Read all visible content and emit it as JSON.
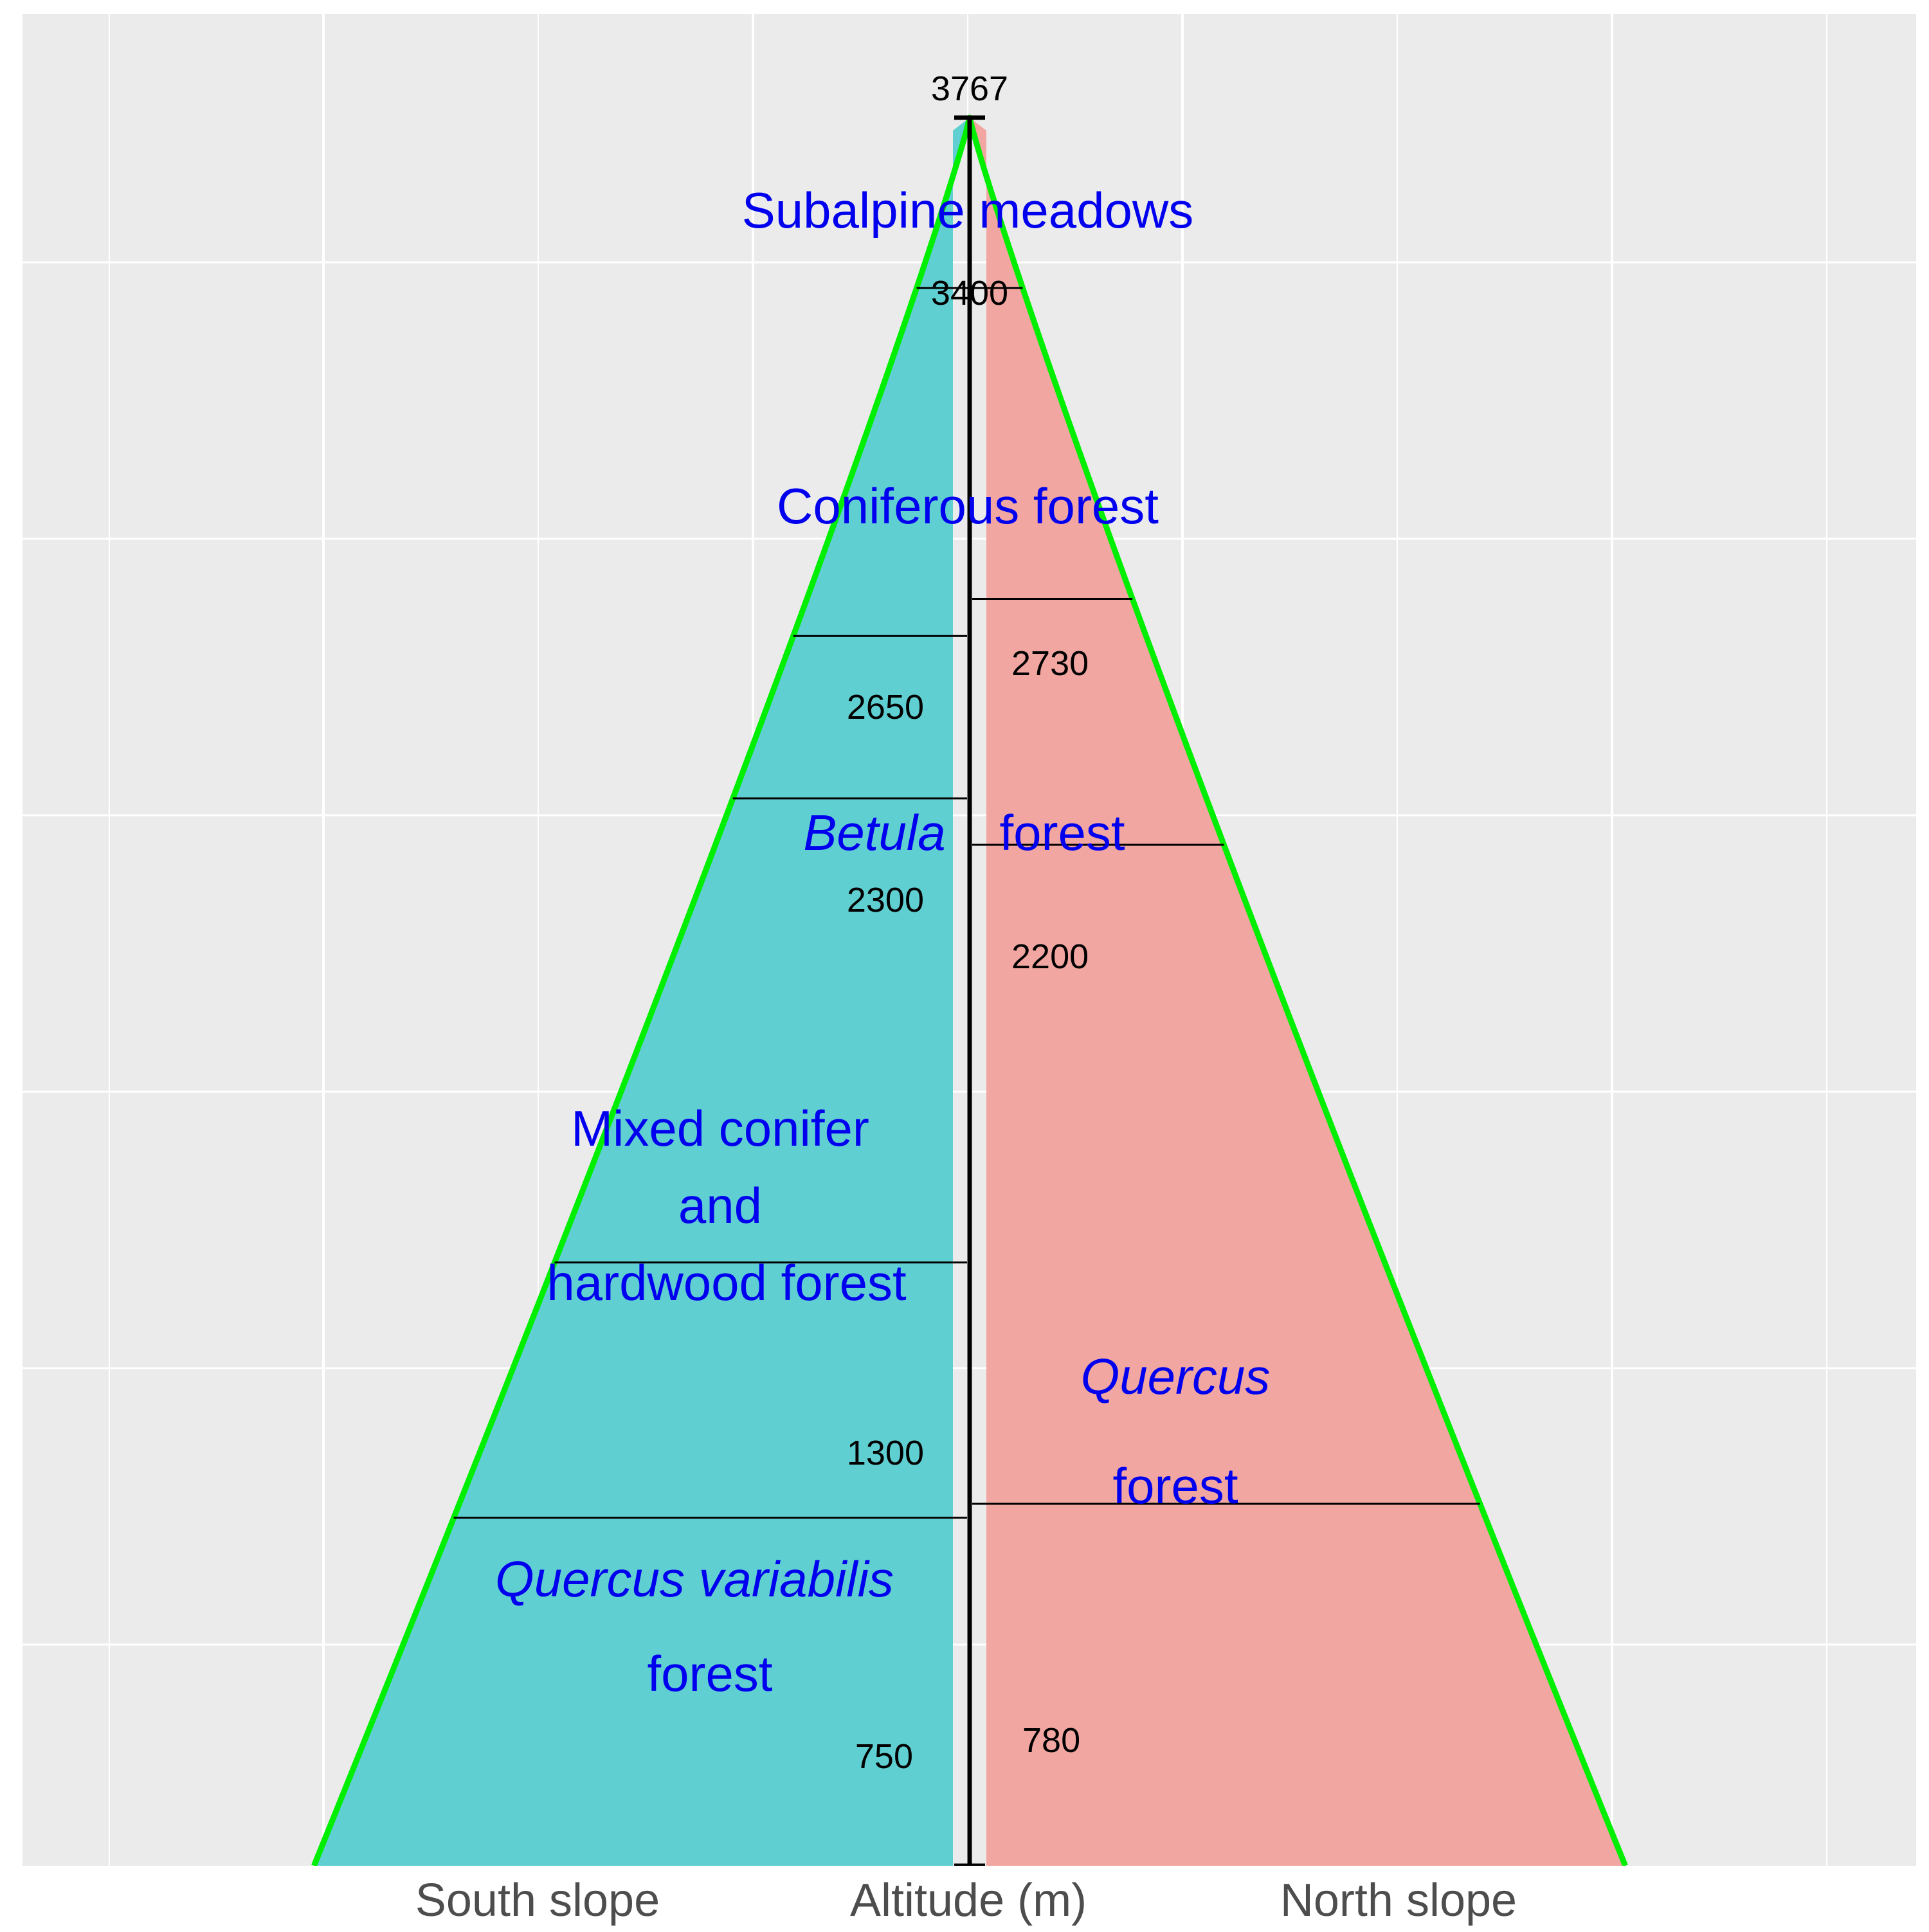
{
  "colors": {
    "panel": "#ebebeb",
    "grid": "#ffffff",
    "south_fill": "#5fcfd2",
    "north_fill": "#f2a6a1",
    "outline": "#00ee00",
    "label": "#0000ee"
  },
  "axis": {
    "south": "South slope",
    "center": "Altitude (m)",
    "north": "North slope"
  },
  "summit": {
    "altitude": 3767,
    "label": "3767"
  },
  "south_boundaries": [
    {
      "altitude": 3400,
      "label": "3400"
    },
    {
      "altitude": 2650,
      "label": "2650"
    },
    {
      "altitude": 2300,
      "label": "2300"
    },
    {
      "altitude": 1300,
      "label": "1300"
    },
    {
      "altitude": 750,
      "label": "750"
    }
  ],
  "north_boundaries": [
    {
      "altitude": 2730,
      "label": "2730"
    },
    {
      "altitude": 2200,
      "label": "2200"
    },
    {
      "altitude": 780,
      "label": "780"
    }
  ],
  "zones": {
    "subalpine": "Subalpine meadows",
    "coniferous": "Coniferous forest",
    "betula": "Betula",
    "betula_forest": "forest",
    "mixed_1": "Mixed conifer",
    "mixed_2": "and",
    "mixed_3": "hardwood forest",
    "quercus_variabilis": "Quercus variabilis",
    "quercus_variabilis_forest": "forest",
    "quercus": "Quercus",
    "quercus_forest": "forest"
  }
}
